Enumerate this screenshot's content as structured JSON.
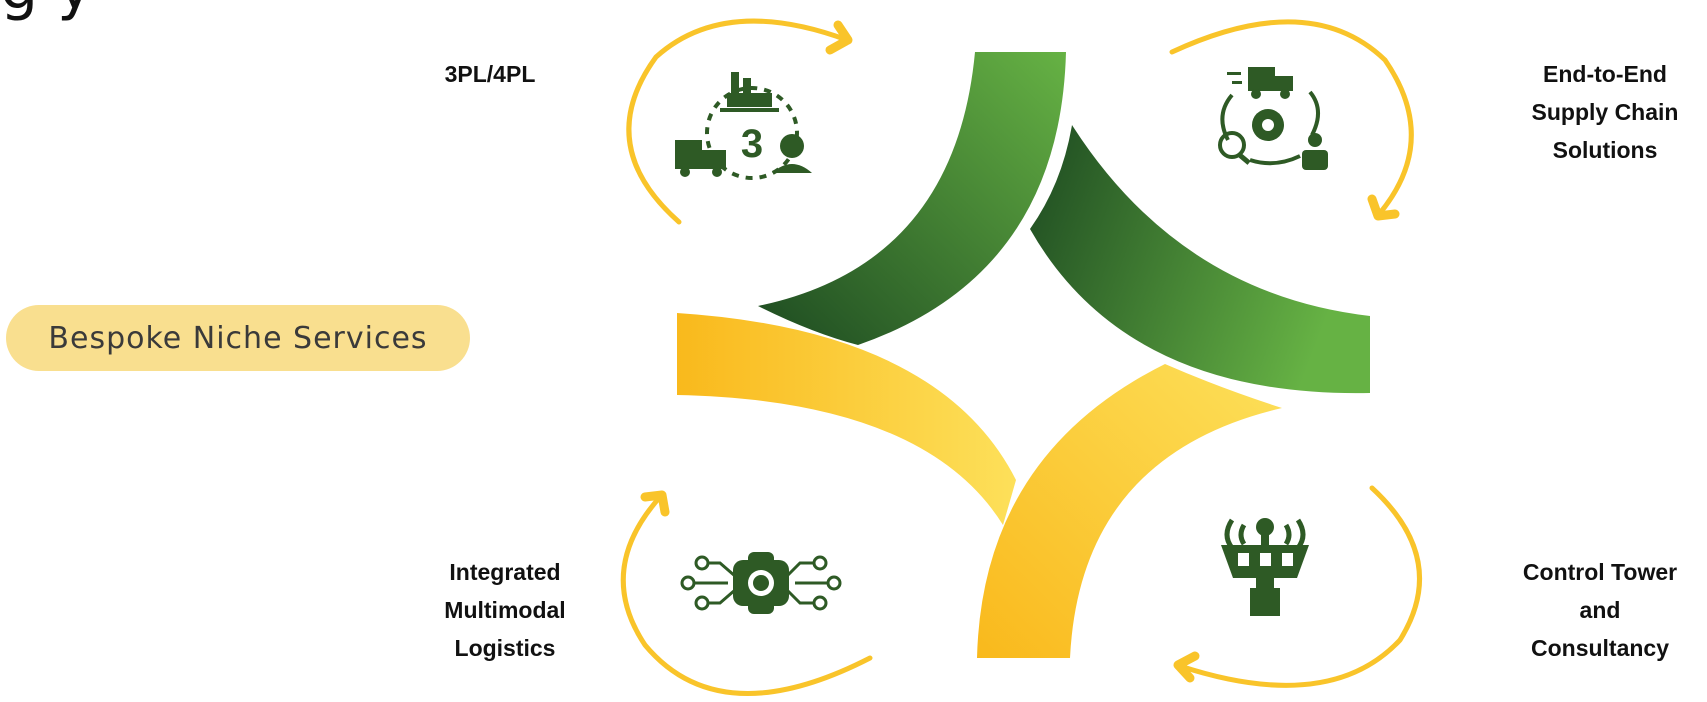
{
  "heading_partial": "g   y",
  "center_label": "Bespoke Niche Services",
  "services": [
    {
      "label": "3PL/4PL",
      "icon": "third-party-logistics-icon"
    },
    {
      "label": "End-to-End\nSupply Chain\nSolutions",
      "icon": "supply-chain-cycle-icon"
    },
    {
      "label": "Integrated\nMultimodal\nLogistics",
      "icon": "circuit-gear-icon"
    },
    {
      "label": "Control Tower\nand\nConsultancy",
      "icon": "control-tower-icon"
    }
  ],
  "colors": {
    "green_dark": "#1d4a21",
    "green_light": "#66b244",
    "yellow_dark": "#f9b91c",
    "yellow_light": "#fde05a",
    "arrow": "#f9c42a",
    "pill": "#f9df8f",
    "icon": "#2e5a25"
  }
}
